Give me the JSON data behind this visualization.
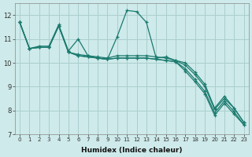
{
  "xlabel": "Humidex (Indice chaleur)",
  "ylabel": "",
  "bg_color": "#ceeaea",
  "grid_color": "#aacece",
  "line_color": "#1a7a6e",
  "x_values": [
    0,
    1,
    2,
    3,
    4,
    5,
    6,
    7,
    8,
    9,
    10,
    11,
    12,
    13,
    14,
    15,
    16,
    17,
    18,
    19,
    20,
    21,
    22,
    23
  ],
  "series": [
    [
      11.7,
      10.6,
      10.7,
      10.7,
      11.6,
      10.5,
      11.0,
      10.3,
      10.2,
      10.15,
      11.1,
      12.2,
      12.15,
      11.7,
      10.2,
      10.25,
      10.1,
      10.0,
      9.6,
      9.1,
      8.1,
      8.6,
      8.1,
      7.5
    ],
    [
      11.7,
      10.6,
      10.65,
      10.65,
      11.55,
      10.45,
      10.35,
      10.3,
      10.25,
      10.2,
      10.3,
      10.3,
      10.3,
      10.3,
      10.25,
      10.2,
      10.1,
      9.9,
      9.5,
      9.0,
      8.05,
      8.5,
      8.1,
      7.5
    ],
    [
      11.7,
      10.6,
      10.65,
      10.65,
      11.55,
      10.45,
      10.3,
      10.25,
      10.2,
      10.15,
      10.2,
      10.2,
      10.2,
      10.2,
      10.15,
      10.1,
      10.05,
      9.75,
      9.3,
      8.8,
      7.9,
      8.4,
      7.95,
      7.4
    ],
    [
      11.7,
      10.6,
      10.65,
      10.65,
      11.55,
      10.45,
      10.3,
      10.25,
      10.2,
      10.15,
      10.2,
      10.2,
      10.2,
      10.2,
      10.15,
      10.1,
      10.05,
      9.65,
      9.2,
      8.7,
      7.8,
      8.3,
      7.85,
      7.4
    ]
  ],
  "ylim": [
    7,
    12.5
  ],
  "xlim": [
    -0.5,
    23.5
  ],
  "yticks": [
    7,
    8,
    9,
    10,
    11,
    12
  ],
  "xticks": [
    0,
    1,
    2,
    3,
    4,
    5,
    6,
    7,
    8,
    9,
    10,
    11,
    12,
    13,
    14,
    15,
    16,
    17,
    18,
    19,
    20,
    21,
    22,
    23
  ]
}
